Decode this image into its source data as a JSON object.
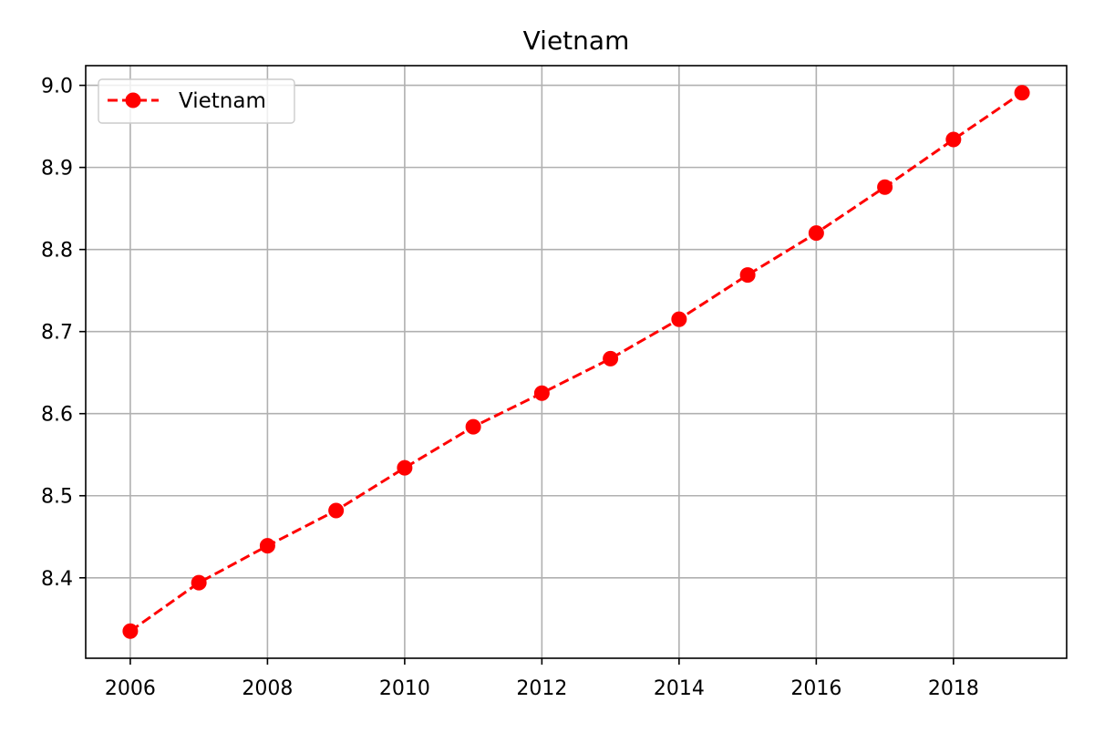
{
  "chart_data": {
    "type": "line",
    "title": "Vietnam",
    "xlabel": "",
    "ylabel": "",
    "x": [
      2006,
      2007,
      2008,
      2009,
      2010,
      2011,
      2012,
      2013,
      2014,
      2015,
      2016,
      2017,
      2018,
      2019
    ],
    "series": [
      {
        "name": "Vietnam",
        "values": [
          8.335,
          8.394,
          8.439,
          8.482,
          8.534,
          8.584,
          8.625,
          8.667,
          8.715,
          8.769,
          8.82,
          8.876,
          8.934,
          8.991
        ],
        "color": "#ff0000",
        "line_style": "dashed",
        "marker": "circle"
      }
    ],
    "xlim": [
      2005.35,
      2019.65
    ],
    "ylim": [
      8.302,
      9.024
    ],
    "x_ticks": [
      2006,
      2008,
      2010,
      2012,
      2014,
      2016,
      2018
    ],
    "x_tick_labels": [
      "2006",
      "2008",
      "2010",
      "2012",
      "2014",
      "2016",
      "2018"
    ],
    "y_ticks": [
      8.4,
      8.5,
      8.6,
      8.7,
      8.8,
      8.9,
      9.0
    ],
    "y_tick_labels": [
      "8.4",
      "8.5",
      "8.6",
      "8.7",
      "8.8",
      "8.9",
      "9.0"
    ],
    "grid": true,
    "grid_color": "#b0b0b0",
    "legend": {
      "position": "top-left",
      "entries": [
        "Vietnam"
      ]
    }
  }
}
